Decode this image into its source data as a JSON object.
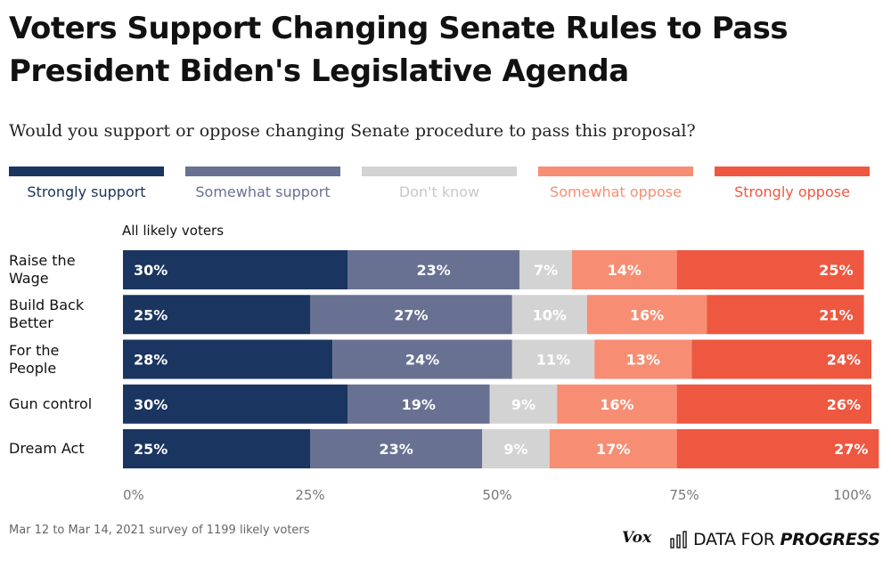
{
  "title": "Voters Support Changing Senate Rules to Pass President Biden's Legislative Agenda",
  "subtitle": "Would you support or oppose changing Senate procedure to pass this proposal?",
  "legend": [
    {
      "label": "Strongly support",
      "color": "#1b3561",
      "text_color": "#1b3561"
    },
    {
      "label": "Somewhat support",
      "color": "#687192",
      "text_color": "#687192"
    },
    {
      "label": "Don't know",
      "color": "#d3d3d3",
      "text_color": "#c8c8c8"
    },
    {
      "label": "Somewhat oppose",
      "color": "#f78e73",
      "text_color": "#f78e73"
    },
    {
      "label": "Strongly oppose",
      "color": "#ee5840",
      "text_color": "#ee5840"
    }
  ],
  "group_label": "All likely voters",
  "chart_data": {
    "type": "bar",
    "orientation": "horizontal",
    "stacked": true,
    "categories": [
      [
        "Raise the",
        "Wage"
      ],
      [
        "Build Back",
        "Better"
      ],
      [
        "For the",
        "People"
      ],
      [
        "Gun control"
      ],
      [
        "Dream Act"
      ]
    ],
    "series": [
      {
        "name": "Strongly support",
        "values": [
          30,
          25,
          28,
          30,
          25
        ]
      },
      {
        "name": "Somewhat support",
        "values": [
          23,
          27,
          24,
          19,
          23
        ]
      },
      {
        "name": "Don't know",
        "values": [
          7,
          10,
          11,
          9,
          9
        ]
      },
      {
        "name": "Somewhat oppose",
        "values": [
          14,
          16,
          13,
          16,
          17
        ]
      },
      {
        "name": "Strongly oppose",
        "values": [
          25,
          21,
          24,
          26,
          27
        ]
      }
    ],
    "xlim": [
      0,
      100
    ],
    "x_ticks": [
      "0%",
      "25%",
      "50%",
      "75%",
      "100%"
    ],
    "data_labels": true,
    "grid": false
  },
  "footer": "Mar 12 to Mar 14, 2021 survey of 1199 likely voters",
  "logos": {
    "vox": "Vox",
    "dfp_plain": "DATA FOR",
    "dfp_bold": "PROGRESS"
  }
}
